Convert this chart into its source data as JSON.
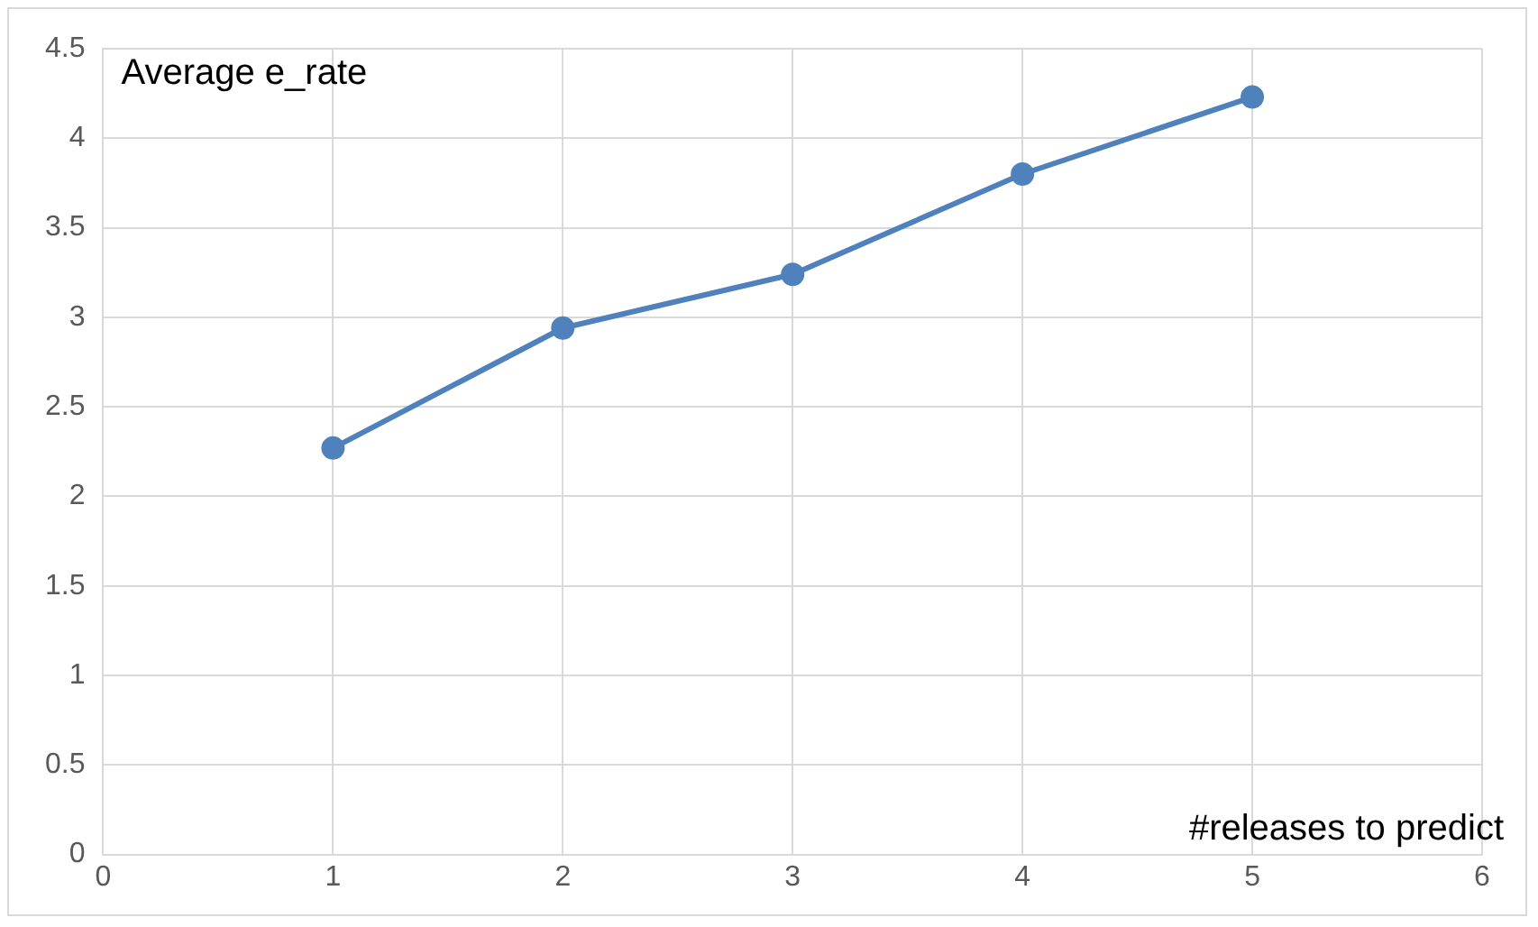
{
  "chart_data": {
    "type": "line",
    "xlabel": "#releases to predict",
    "ylabel": "Average e_rate",
    "x": [
      1,
      2,
      3,
      4,
      5
    ],
    "series": [
      {
        "color": "#4f81bd",
        "values": [
          2.27,
          2.94,
          3.24,
          3.8,
          4.23
        ]
      }
    ],
    "xlim": [
      0,
      6
    ],
    "xticks": [
      0,
      1,
      2,
      3,
      4,
      5,
      6
    ],
    "ylim": [
      0,
      4.5
    ],
    "yticks": [
      0,
      0.5,
      1,
      1.5,
      2,
      2.5,
      3,
      3.5,
      4,
      4.5
    ],
    "grid": true,
    "legend": false,
    "marker": "circle",
    "line_style": "solid"
  }
}
